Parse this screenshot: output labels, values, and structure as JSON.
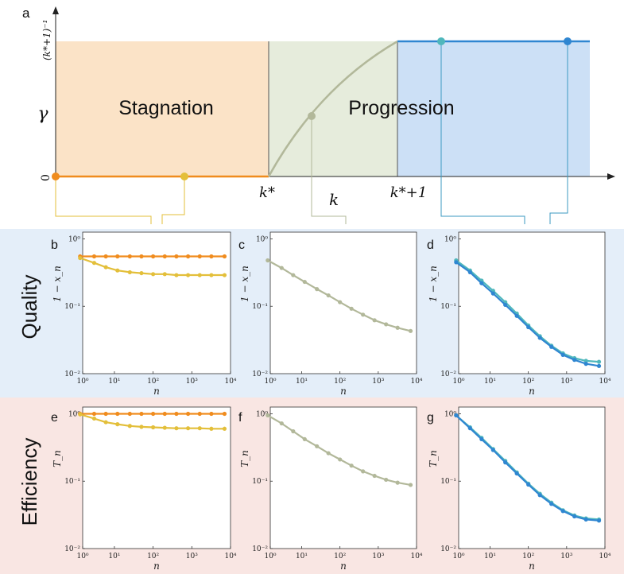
{
  "colors": {
    "stagnation_bg": "#fbe3c7",
    "middle_bg": "#e6ecdc",
    "progression_bg": "#cce0f6",
    "quality_band": "#e4eef9",
    "efficiency_band": "#f9e6e3",
    "orange": "#f08c1e",
    "yellow": "#e3bf3a",
    "gray_green": "#b2b89a",
    "teal": "#4fb7bc",
    "blue": "#2f86d1",
    "dark_blue": "#2a6aa6"
  },
  "panel_a": {
    "letter": "a",
    "region_stagnation": "Stagnation",
    "region_progression": "Progression",
    "y_symbol": "γ",
    "y_top_label": "(k*+1)⁻¹",
    "y_zero": "0",
    "x_kstar": "k*",
    "x_k": "k",
    "x_kstar1": "k*+1"
  },
  "row_labels": {
    "quality": "Quality",
    "efficiency": "Efficiency"
  },
  "chart_data": [
    {
      "panel": "a",
      "type": "line",
      "xlabel": "k",
      "ylabel": "γ",
      "x_ticks": [
        "k*",
        "k*+1"
      ],
      "y_ticks": [
        "0",
        "(k*+1)⁻¹"
      ],
      "series": [
        {
          "x": [
            0,
            1,
            2,
            3,
            4
          ],
          "y": [
            0,
            0,
            0.5,
            1,
            1
          ]
        }
      ],
      "highlighted_points": [
        {
          "x": 0,
          "y": 0,
          "color": "#f08c1e"
        },
        {
          "x": 0.6,
          "y": 0,
          "color": "#e3bf3a"
        },
        {
          "x": 2.2,
          "y": 0.55,
          "color": "#b2b89a"
        },
        {
          "x": 3.2,
          "y": 1,
          "color": "#4fb7bc"
        },
        {
          "x": 3.8,
          "y": 1,
          "color": "#2f86d1"
        }
      ]
    },
    {
      "panel": "b",
      "type": "line",
      "ylabel": "1 − x_n",
      "xlabel": "n",
      "x_ticks": [
        "10⁰",
        "10¹",
        "10²",
        "10³",
        "10⁴"
      ],
      "y_ticks": [
        "10⁰",
        "10⁻¹",
        "10⁻²"
      ],
      "series": [
        {
          "color": "#f08c1e",
          "x": [
            1.3,
            3,
            6,
            12,
            25,
            50,
            100,
            200,
            400,
            800,
            1600,
            3200,
            7000
          ],
          "y": [
            0.55,
            0.55,
            0.55,
            0.55,
            0.55,
            0.55,
            0.55,
            0.55,
            0.55,
            0.55,
            0.55,
            0.55,
            0.55
          ]
        },
        {
          "color": "#e3bf3a",
          "x": [
            1.3,
            3,
            6,
            12,
            25,
            50,
            100,
            200,
            400,
            800,
            1600,
            3200,
            7000
          ],
          "y": [
            0.52,
            0.44,
            0.38,
            0.34,
            0.32,
            0.31,
            0.3,
            0.3,
            0.29,
            0.29,
            0.29,
            0.29,
            0.29
          ]
        }
      ]
    },
    {
      "panel": "c",
      "type": "line",
      "ylabel": "1 − x_n",
      "xlabel": "n",
      "x_ticks": [
        "10⁰",
        "10¹",
        "10²",
        "10³",
        "10⁴"
      ],
      "y_ticks": [
        "10⁰",
        "10⁻¹",
        "10⁻²"
      ],
      "series": [
        {
          "color": "#b2b89a",
          "x": [
            1.3,
            3,
            6,
            12,
            25,
            50,
            100,
            200,
            400,
            800,
            1600,
            3200,
            7000
          ],
          "y": [
            0.48,
            0.37,
            0.29,
            0.23,
            0.18,
            0.145,
            0.115,
            0.092,
            0.075,
            0.062,
            0.054,
            0.048,
            0.043
          ]
        }
      ]
    },
    {
      "panel": "d",
      "type": "line",
      "ylabel": "1 − x_n",
      "xlabel": "n",
      "x_ticks": [
        "10⁰",
        "10¹",
        "10²",
        "10³",
        "10⁴"
      ],
      "y_ticks": [
        "10⁰",
        "10⁻¹",
        "10⁻²"
      ],
      "series": [
        {
          "color": "#4fb7bc",
          "x": [
            1.3,
            3,
            6,
            12,
            25,
            50,
            100,
            200,
            400,
            800,
            1600,
            3200,
            7000
          ],
          "y": [
            0.48,
            0.34,
            0.24,
            0.17,
            0.115,
            0.078,
            0.052,
            0.036,
            0.026,
            0.02,
            0.017,
            0.0155,
            0.015
          ]
        },
        {
          "color": "#2f86d1",
          "x": [
            1.3,
            3,
            6,
            12,
            25,
            50,
            100,
            200,
            400,
            800,
            1600,
            3200,
            7000
          ],
          "y": [
            0.45,
            0.32,
            0.22,
            0.155,
            0.105,
            0.072,
            0.049,
            0.034,
            0.025,
            0.019,
            0.016,
            0.014,
            0.013
          ]
        }
      ]
    },
    {
      "panel": "e",
      "type": "line",
      "ylabel": "T_n",
      "xlabel": "n",
      "x_ticks": [
        "10⁰",
        "10¹",
        "10²",
        "10³",
        "10⁴"
      ],
      "y_ticks": [
        "10⁰",
        "10⁻¹",
        "10⁻²"
      ],
      "series": [
        {
          "color": "#f08c1e",
          "x": [
            1.3,
            3,
            6,
            12,
            25,
            50,
            100,
            200,
            400,
            800,
            1600,
            3200,
            7000
          ],
          "y": [
            1,
            1,
            1,
            1,
            1,
            1,
            1,
            1,
            1,
            1,
            1,
            1,
            1
          ]
        },
        {
          "color": "#e3bf3a",
          "x": [
            1.3,
            3,
            6,
            12,
            25,
            50,
            100,
            200,
            400,
            800,
            1600,
            3200,
            7000
          ],
          "y": [
            0.98,
            0.85,
            0.75,
            0.7,
            0.66,
            0.64,
            0.63,
            0.62,
            0.61,
            0.61,
            0.61,
            0.6,
            0.6
          ]
        }
      ]
    },
    {
      "panel": "f",
      "type": "line",
      "ylabel": "T_n",
      "xlabel": "n",
      "x_ticks": [
        "10⁰",
        "10¹",
        "10²",
        "10³",
        "10⁴"
      ],
      "y_ticks": [
        "10⁰",
        "10⁻¹",
        "10⁻²"
      ],
      "series": [
        {
          "color": "#b2b89a",
          "x": [
            1.3,
            3,
            6,
            12,
            25,
            50,
            100,
            200,
            400,
            800,
            1600,
            3200,
            7000
          ],
          "y": [
            0.95,
            0.72,
            0.55,
            0.42,
            0.33,
            0.26,
            0.21,
            0.17,
            0.14,
            0.12,
            0.105,
            0.095,
            0.088
          ]
        }
      ]
    },
    {
      "panel": "g",
      "type": "line",
      "ylabel": "T_n",
      "xlabel": "n",
      "x_ticks": [
        "10⁰",
        "10¹",
        "10²",
        "10³",
        "10⁴"
      ],
      "y_ticks": [
        "10⁰",
        "10⁻¹",
        "10⁻²"
      ],
      "series": [
        {
          "color": "#4fb7bc",
          "x": [
            1.3,
            3,
            6,
            12,
            25,
            50,
            100,
            200,
            400,
            800,
            1600,
            3200,
            7000
          ],
          "y": [
            0.95,
            0.63,
            0.44,
            0.3,
            0.2,
            0.135,
            0.092,
            0.065,
            0.048,
            0.037,
            0.031,
            0.028,
            0.027
          ]
        },
        {
          "color": "#2f86d1",
          "x": [
            1.3,
            3,
            6,
            12,
            25,
            50,
            100,
            200,
            400,
            800,
            1600,
            3200,
            7000
          ],
          "y": [
            0.95,
            0.61,
            0.42,
            0.29,
            0.19,
            0.13,
            0.089,
            0.062,
            0.046,
            0.036,
            0.03,
            0.027,
            0.026
          ]
        }
      ]
    }
  ]
}
